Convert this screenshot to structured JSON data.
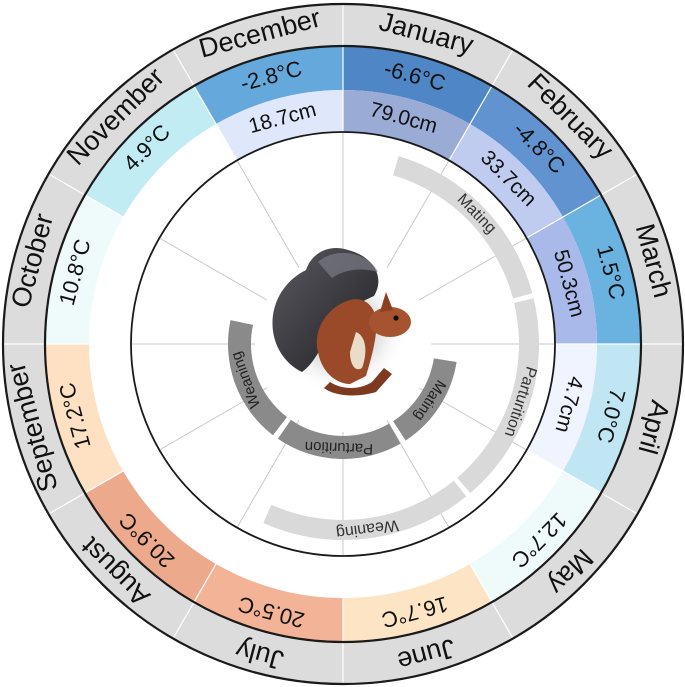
{
  "months": [
    {
      "name": "January",
      "temp": "-6.6°C",
      "temp_color": "#4f86c6",
      "snow": "79.0cm",
      "snow_color": "#9aabd6"
    },
    {
      "name": "February",
      "temp": "-4.8°C",
      "temp_color": "#6193d1",
      "snow": "33.7cm",
      "snow_color": "#bfccf0"
    },
    {
      "name": "March",
      "temp": "1.5°C",
      "temp_color": "#6ab2e0",
      "snow": "50.3cm",
      "snow_color": "#a9b9ea"
    },
    {
      "name": "April",
      "temp": "7.0°C",
      "temp_color": "#bfe6f2",
      "snow": "4.7cm",
      "snow_color": "#f0f4ff"
    },
    {
      "name": "May",
      "temp": "12.7°C",
      "temp_color": "#effafb",
      "snow": "",
      "snow_color": ""
    },
    {
      "name": "June",
      "temp": "16.7°C",
      "temp_color": "#fde4c4",
      "snow": "",
      "snow_color": ""
    },
    {
      "name": "July",
      "temp": "20.5°C",
      "temp_color": "#f2b396",
      "snow": "",
      "snow_color": ""
    },
    {
      "name": "August",
      "temp": "20.9°C",
      "temp_color": "#eda98b",
      "snow": "",
      "snow_color": ""
    },
    {
      "name": "September",
      "temp": "17.2°C",
      "temp_color": "#fde1c2",
      "snow": "",
      "snow_color": ""
    },
    {
      "name": "October",
      "temp": "10.8°C",
      "temp_color": "#effafb",
      "snow": "",
      "snow_color": ""
    },
    {
      "name": "November",
      "temp": "4.9°C",
      "temp_color": "#c2ecf3",
      "snow": "",
      "snow_color": ""
    },
    {
      "name": "December",
      "temp": "-2.8°C",
      "temp_color": "#64a8dc",
      "snow": "18.7cm",
      "snow_color": "#dfe7fb"
    }
  ],
  "phases_light": [
    {
      "label": "Mating",
      "start_month": 0.55,
      "end_month": 2.5
    },
    {
      "label": "Parturition",
      "start_month": 2.55,
      "end_month": 4.65
    },
    {
      "label": "Weaning",
      "start_month": 4.7,
      "end_month": 6.8
    }
  ],
  "phases_dark": [
    {
      "label": "Mating",
      "start_month": 3.3,
      "end_month": 4.9
    },
    {
      "label": "Parturition",
      "start_month": 5.0,
      "end_month": 7.15
    },
    {
      "label": "Weaning",
      "start_month": 7.25,
      "end_month": 9.4
    }
  ],
  "colors": {
    "month_ring": "#dcdcdc",
    "phase_light": "#d9d9d9",
    "phase_dark": "#8a8a8a",
    "outline": "#1a1a1a",
    "divider": "#c8c8c8"
  },
  "center_image": "red-squirrel"
}
